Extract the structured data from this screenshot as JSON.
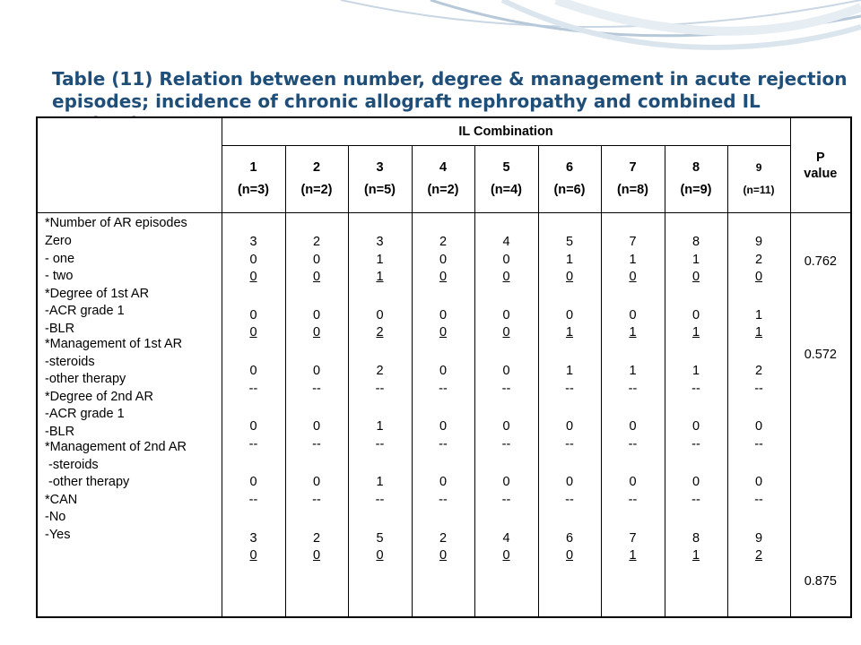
{
  "title": "Table (11) Relation between number, degree & management in acute rejection episodes; incidence of chronic allograft nephropathy and combined IL production",
  "header": {
    "group_title": "IL Combination",
    "p_value_line1": "P",
    "p_value_line2": "value",
    "groups": [
      {
        "num": "1",
        "n": "(n=3)"
      },
      {
        "num": "2",
        "n": "(n=2)"
      },
      {
        "num": "3",
        "n": "(n=5)"
      },
      {
        "num": "4",
        "n": "(n=2)"
      },
      {
        "num": "5",
        "n": "(n=4)"
      },
      {
        "num": "6",
        "n": "(n=6)"
      },
      {
        "num": "7",
        "n": "(n=8)"
      },
      {
        "num": "8",
        "n": "(n=9)"
      },
      {
        "num": "9",
        "n": "(n=11)"
      }
    ]
  },
  "row_labels": [
    "*Number of AR episodes",
    "Zero",
    "- one",
    "- two",
    "*Degree of 1st AR",
    "-ACR grade 1",
    "-BLR",
    "*Management of 1st AR",
    "-steroids",
    "-other therapy",
    "*Degree of 2nd AR",
    "-ACR grade 1",
    "-BLR",
    "*Management of 2nd AR",
    " -steroids",
    " -other therapy",
    "*CAN",
    "-No",
    "-Yes"
  ],
  "columns": [
    {
      "zero": "3",
      "one": "0",
      "two": "0",
      "acr1": "0",
      "blr1": "0",
      "ster1": "0",
      "oth1": "--",
      "acr2": "0",
      "blr2": "--",
      "ster2": "0",
      "oth2": "--",
      "can_no": "3",
      "can_yes": "0"
    },
    {
      "zero": "2",
      "one": "0",
      "two": "0",
      "acr1": "0",
      "blr1": "0",
      "ster1": "0",
      "oth1": "--",
      "acr2": "0",
      "blr2": "--",
      "ster2": "0",
      "oth2": "--",
      "can_no": "2",
      "can_yes": "0"
    },
    {
      "zero": "3",
      "one": "1",
      "two": "1",
      "acr1": "0",
      "blr1": "2",
      "ster1": "2",
      "oth1": "--",
      "acr2": "1",
      "blr2": "--",
      "ster2": "1",
      "oth2": "--",
      "can_no": "5",
      "can_yes": "0"
    },
    {
      "zero": "2",
      "one": "0",
      "two": "0",
      "acr1": "0",
      "blr1": "0",
      "ster1": "0",
      "oth1": "--",
      "acr2": "0",
      "blr2": "--",
      "ster2": "0",
      "oth2": "--",
      "can_no": "2",
      "can_yes": "0"
    },
    {
      "zero": "4",
      "one": "0",
      "two": "0",
      "acr1": "0",
      "blr1": "0",
      "ster1": "0",
      "oth1": "--",
      "acr2": "0",
      "blr2": "--",
      "ster2": "0",
      "oth2": "--",
      "can_no": "4",
      "can_yes": "0"
    },
    {
      "zero": "5",
      "one": "1",
      "two": "0",
      "acr1": "0",
      "blr1": "1",
      "ster1": "1",
      "oth1": "--",
      "acr2": "0",
      "blr2": "--",
      "ster2": "0",
      "oth2": "--",
      "can_no": "6",
      "can_yes": "0"
    },
    {
      "zero": "7",
      "one": "1",
      "two": "0",
      "acr1": "0",
      "blr1": "1",
      "ster1": "1",
      "oth1": "--",
      "acr2": "0",
      "blr2": "--",
      "ster2": "0",
      "oth2": "--",
      "can_no": "7",
      "can_yes": "1"
    },
    {
      "zero": "8",
      "one": "1",
      "two": "0",
      "acr1": "0",
      "blr1": "1",
      "ster1": "1",
      "oth1": "--",
      "acr2": "0",
      "blr2": "--",
      "ster2": "0",
      "oth2": "--",
      "can_no": "8",
      "can_yes": "1"
    },
    {
      "zero": "9",
      "one": "2",
      "two": "0",
      "acr1": "1",
      "blr1": "1",
      "ster1": "2",
      "oth1": "--",
      "acr2": "0",
      "blr2": "--",
      "ster2": "0",
      "oth2": "--",
      "can_no": "9",
      "can_yes": "2"
    }
  ],
  "p_values": {
    "ar_episodes": "0.762",
    "degree_1st": "0.572",
    "can": "0.875"
  }
}
